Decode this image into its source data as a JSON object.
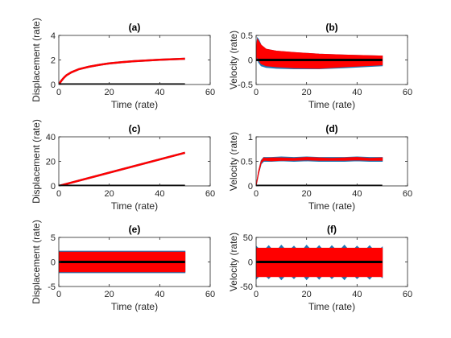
{
  "figure": {
    "background": "#ffffff",
    "axes_color": "#262626"
  },
  "chart_data": [
    {
      "panel": "a",
      "type": "line",
      "title": "(a)",
      "xlabel": "Time (rate)",
      "ylabel": "Displacement (rate)",
      "xlim": [
        0,
        60
      ],
      "ylim": [
        0,
        4
      ],
      "xticks": [
        "0",
        "20",
        "40",
        "60"
      ],
      "yticks": [
        "0",
        "2",
        "4"
      ],
      "grid": false,
      "legend": "none",
      "series": [
        {
          "color": "#1f77b4",
          "style": "line",
          "x": [
            0,
            1,
            2,
            3,
            5,
            8,
            12,
            16,
            20,
            25,
            30,
            35,
            40,
            45,
            50
          ],
          "y": [
            0,
            0.3,
            0.55,
            0.75,
            1.0,
            1.25,
            1.45,
            1.6,
            1.72,
            1.82,
            1.9,
            1.96,
            2.02,
            2.06,
            2.1
          ]
        },
        {
          "color": "#ff0000",
          "style": "line",
          "x": [
            0,
            1,
            2,
            3,
            5,
            8,
            12,
            16,
            20,
            25,
            30,
            35,
            40,
            45,
            50
          ],
          "y": [
            0,
            0.3,
            0.55,
            0.75,
            1.0,
            1.25,
            1.45,
            1.6,
            1.72,
            1.82,
            1.9,
            1.96,
            2.02,
            2.06,
            2.1
          ]
        },
        {
          "color": "#000000",
          "style": "line",
          "x": [
            0,
            50
          ],
          "y": [
            0,
            0
          ]
        }
      ]
    },
    {
      "panel": "b",
      "type": "line",
      "title": "(b)",
      "xlabel": "Time (rate)",
      "ylabel": "Velocity (rate)",
      "xlim": [
        0,
        60
      ],
      "ylim": [
        -0.5,
        0.5
      ],
      "xticks": [
        "0",
        "20",
        "40",
        "60"
      ],
      "yticks": [
        "-0.5",
        "0",
        "0.5"
      ],
      "grid": false,
      "legend": "none",
      "series": [
        {
          "color": "#1f77b4",
          "style": "band",
          "x": [
            0,
            0.5,
            1,
            2,
            4,
            8,
            15,
            25,
            35,
            50
          ],
          "upper": [
            0.2,
            0.45,
            0.42,
            0.3,
            0.22,
            0.18,
            0.15,
            0.12,
            0.1,
            0.08
          ],
          "lower": [
            0.0,
            0.05,
            -0.05,
            -0.12,
            -0.15,
            -0.17,
            -0.18,
            -0.18,
            -0.16,
            -0.12
          ]
        },
        {
          "color": "#ff0000",
          "style": "band",
          "x": [
            0,
            0.5,
            1,
            2,
            4,
            8,
            15,
            25,
            35,
            50
          ],
          "upper": [
            0.2,
            0.42,
            0.38,
            0.3,
            0.22,
            0.18,
            0.15,
            0.12,
            0.1,
            0.08
          ],
          "lower": [
            0.0,
            0.08,
            0.0,
            -0.08,
            -0.12,
            -0.14,
            -0.16,
            -0.17,
            -0.14,
            -0.1
          ]
        },
        {
          "color": "#000000",
          "style": "line",
          "x": [
            0,
            50
          ],
          "y": [
            0,
            0
          ]
        }
      ]
    },
    {
      "panel": "c",
      "type": "line",
      "title": "(c)",
      "xlabel": "Time (rate)",
      "ylabel": "Displacement (rate)",
      "xlim": [
        0,
        60
      ],
      "ylim": [
        0,
        40
      ],
      "xticks": [
        "0",
        "20",
        "40",
        "60"
      ],
      "yticks": [
        "0",
        "20",
        "40"
      ],
      "grid": false,
      "legend": "none",
      "series": [
        {
          "color": "#1f77b4",
          "style": "line",
          "x": [
            0,
            50
          ],
          "y": [
            0,
            27
          ]
        },
        {
          "color": "#ff0000",
          "style": "line",
          "x": [
            0,
            50
          ],
          "y": [
            0,
            27
          ]
        },
        {
          "color": "#000000",
          "style": "line",
          "x": [
            0,
            50
          ],
          "y": [
            0,
            0
          ]
        }
      ]
    },
    {
      "panel": "d",
      "type": "line",
      "title": "(d)",
      "xlabel": "Time (rate)",
      "ylabel": "Velocity (rate)",
      "xlim": [
        0,
        60
      ],
      "ylim": [
        0,
        1
      ],
      "xticks": [
        "0",
        "20",
        "40",
        "60"
      ],
      "yticks": [
        "0",
        "0.5",
        "1"
      ],
      "grid": false,
      "legend": "none",
      "series": [
        {
          "color": "#1f77b4",
          "style": "band",
          "x": [
            0,
            1,
            2,
            3,
            4,
            6,
            10,
            15,
            20,
            25,
            30,
            35,
            40,
            45,
            50
          ],
          "upper": [
            0,
            0.3,
            0.52,
            0.58,
            0.58,
            0.58,
            0.59,
            0.58,
            0.59,
            0.58,
            0.58,
            0.58,
            0.59,
            0.58,
            0.58
          ],
          "lower": [
            0,
            0.25,
            0.45,
            0.5,
            0.5,
            0.5,
            0.51,
            0.5,
            0.51,
            0.5,
            0.5,
            0.5,
            0.51,
            0.5,
            0.5
          ]
        },
        {
          "color": "#ff0000",
          "style": "band",
          "x": [
            0,
            1,
            2,
            3,
            4,
            6,
            10,
            15,
            20,
            25,
            30,
            35,
            40,
            45,
            50
          ],
          "upper": [
            0,
            0.3,
            0.5,
            0.57,
            0.56,
            0.57,
            0.57,
            0.56,
            0.58,
            0.57,
            0.56,
            0.57,
            0.58,
            0.56,
            0.57
          ],
          "lower": [
            0,
            0.26,
            0.47,
            0.52,
            0.52,
            0.51,
            0.52,
            0.52,
            0.53,
            0.52,
            0.52,
            0.52,
            0.53,
            0.52,
            0.52
          ]
        },
        {
          "color": "#000000",
          "style": "line",
          "x": [
            0,
            50
          ],
          "y": [
            0,
            0
          ]
        }
      ]
    },
    {
      "panel": "e",
      "type": "line",
      "title": "(e)",
      "xlabel": "Time (rate)",
      "ylabel": "Displacement (rate)",
      "xlim": [
        0,
        60
      ],
      "ylim": [
        -5,
        5
      ],
      "xticks": [
        "0",
        "20",
        "40",
        "60"
      ],
      "yticks": [
        "-5",
        "0",
        "5"
      ],
      "grid": false,
      "legend": "none",
      "series": [
        {
          "color": "#1f77b4",
          "style": "band",
          "x": [
            0,
            50
          ],
          "upper": [
            2.2,
            2.2
          ],
          "lower": [
            -2.2,
            -2.2
          ]
        },
        {
          "color": "#ff0000",
          "style": "band",
          "x": [
            0,
            50
          ],
          "upper": [
            2.0,
            2.0
          ],
          "lower": [
            -2.0,
            -2.0
          ]
        },
        {
          "color": "#000000",
          "style": "line",
          "x": [
            0,
            50
          ],
          "y": [
            0,
            0
          ]
        }
      ]
    },
    {
      "panel": "f",
      "type": "line",
      "title": "(f)",
      "xlabel": "Time (rate)",
      "ylabel": "Velocity (rate)",
      "xlim": [
        0,
        60
      ],
      "ylim": [
        -50,
        50
      ],
      "xticks": [
        "0",
        "20",
        "40",
        "60"
      ],
      "yticks": [
        "-50",
        "0",
        "50"
      ],
      "grid": false,
      "legend": "none",
      "series": [
        {
          "color": "#1f77b4",
          "style": "band",
          "x": [
            0,
            2.5,
            5,
            7.5,
            10,
            12.5,
            15,
            17.5,
            20,
            22.5,
            25,
            27.5,
            30,
            32.5,
            35,
            37.5,
            40,
            42.5,
            45,
            47.5,
            50
          ],
          "upper": [
            32,
            20,
            33,
            18,
            34,
            20,
            32,
            18,
            34,
            20,
            33,
            18,
            33,
            20,
            34,
            19,
            32,
            20,
            33,
            18,
            30
          ],
          "lower": [
            -35,
            -22,
            -34,
            -20,
            -36,
            -22,
            -34,
            -20,
            -36,
            -21,
            -35,
            -20,
            -34,
            -22,
            -36,
            -20,
            -34,
            -22,
            -35,
            -20,
            -32
          ]
        },
        {
          "color": "#ff0000",
          "style": "band",
          "x": [
            0,
            50
          ],
          "upper": [
            28,
            28
          ],
          "lower": [
            -30,
            -30
          ]
        },
        {
          "color": "#000000",
          "style": "line",
          "x": [
            0,
            50
          ],
          "y": [
            0,
            0
          ]
        }
      ]
    }
  ]
}
